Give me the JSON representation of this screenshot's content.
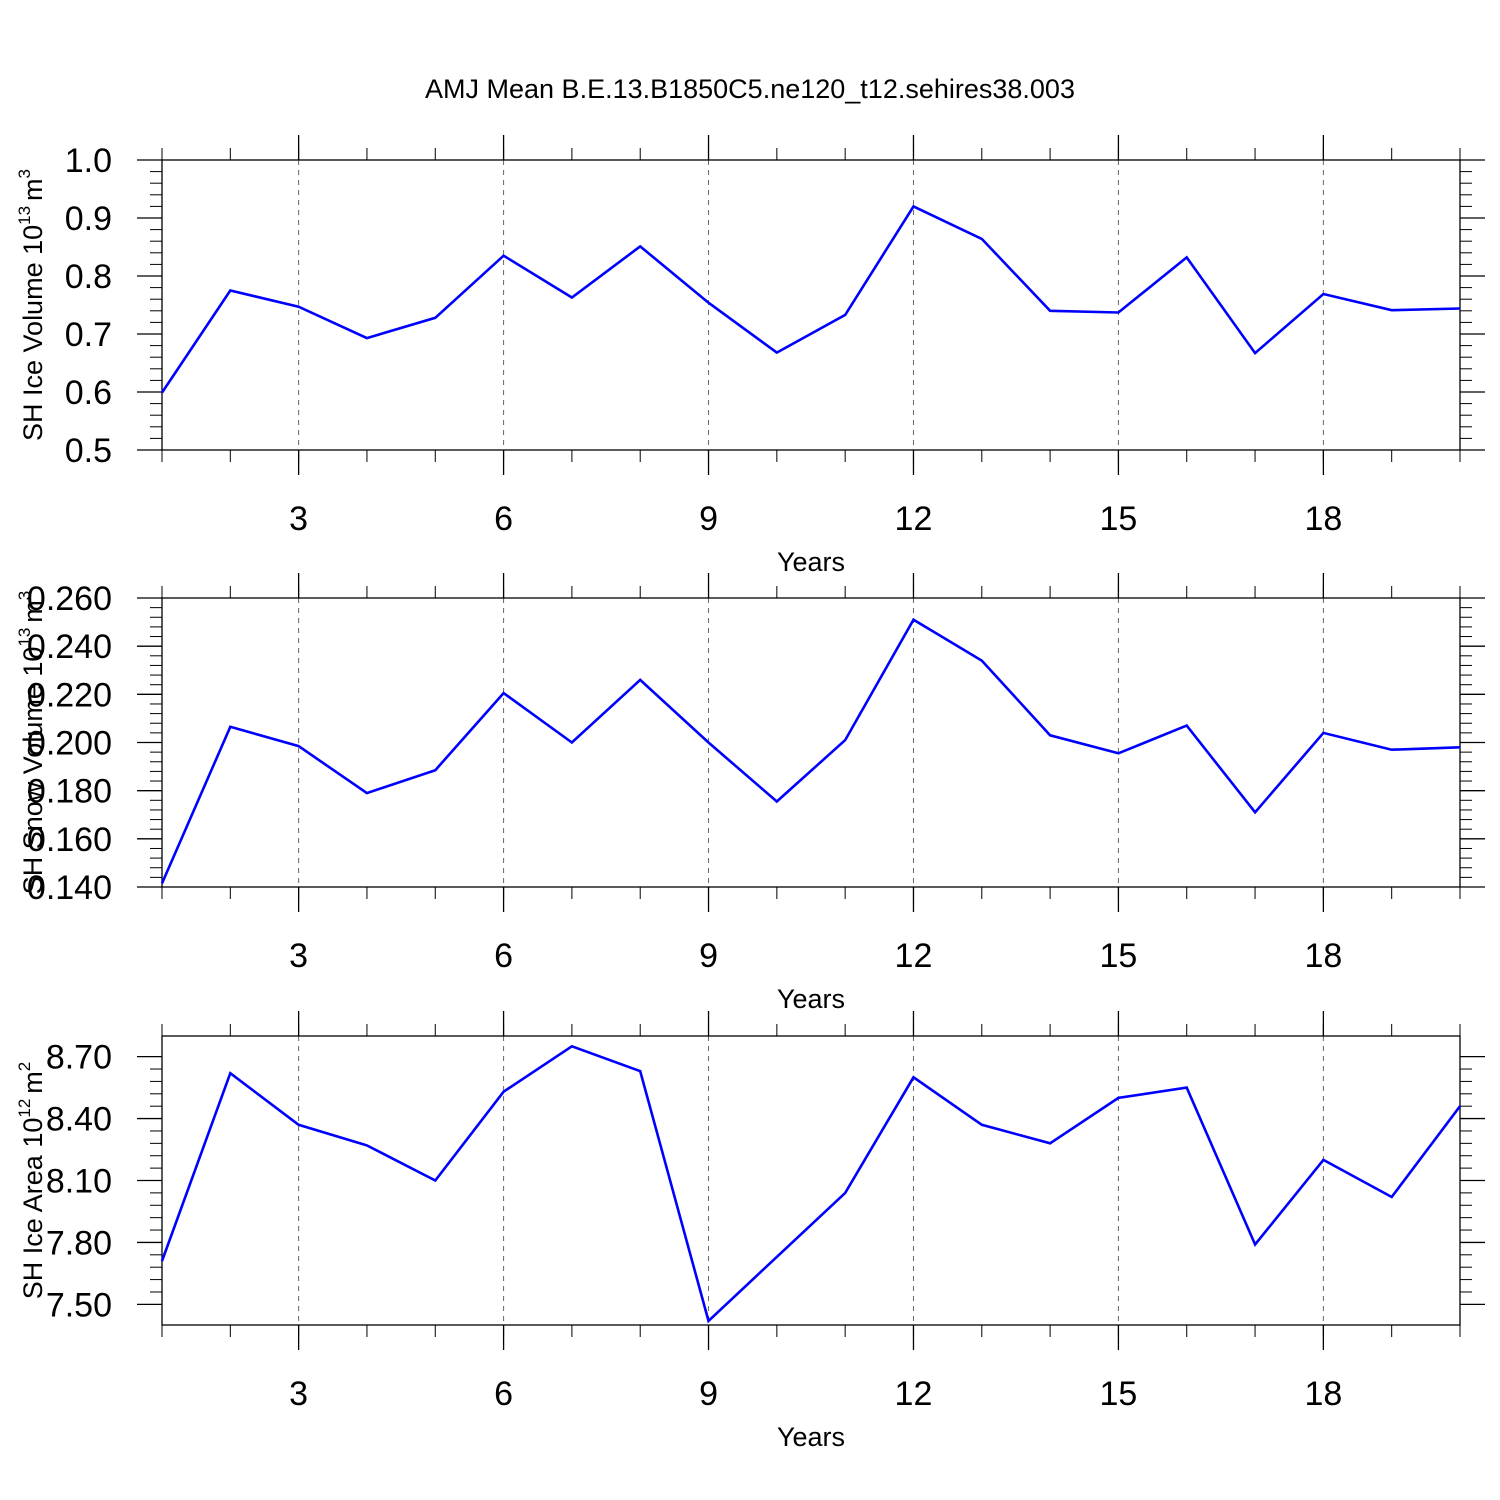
{
  "figure": {
    "title": "AMJ Mean B.E.13.B1850C5.ne120_t12.sehires38.003",
    "line_color": "#0000ff"
  },
  "chart_data": [
    {
      "type": "line",
      "title": "AMJ Mean B.E.13.B1850C5.ne120_t12.sehires38.003",
      "xlabel": "Years",
      "ylabel": "SH Ice Volume 10",
      "ylabel_exp": "13",
      "ylabel_unit": "m",
      "ylabel_unit_exp": "3",
      "xlim": [
        1,
        20
      ],
      "ylim": [
        0.5,
        1.0
      ],
      "xticks": [
        3,
        6,
        9,
        12,
        15,
        18
      ],
      "xtick_labels": [
        "3",
        "6",
        "9",
        "12",
        "15",
        "18"
      ],
      "yticks": [
        0.5,
        0.6,
        0.7,
        0.8,
        0.9,
        1.0
      ],
      "ytick_labels": [
        "0.5",
        "0.6",
        "0.7",
        "0.8",
        "0.9",
        "1.0"
      ],
      "grid": "x-dashed",
      "x": [
        1,
        2,
        3,
        4,
        5,
        6,
        7,
        8,
        9,
        10,
        11,
        12,
        13,
        14,
        15,
        16,
        17,
        18,
        19,
        20
      ],
      "series": [
        {
          "name": "SH Ice Volume",
          "values": [
            0.599,
            0.775,
            0.747,
            0.693,
            0.728,
            0.835,
            0.763,
            0.851,
            0.754,
            0.668,
            0.733,
            0.92,
            0.864,
            0.74,
            0.737,
            0.832,
            0.667,
            0.769,
            0.741,
            0.744
          ]
        }
      ]
    },
    {
      "type": "line",
      "xlabel": "Years",
      "ylabel": "SH Snow Volume 10",
      "ylabel_exp": "13",
      "ylabel_unit": "m",
      "ylabel_unit_exp": "3",
      "xlim": [
        1,
        20
      ],
      "ylim": [
        0.14,
        0.26
      ],
      "xticks": [
        3,
        6,
        9,
        12,
        15,
        18
      ],
      "xtick_labels": [
        "3",
        "6",
        "9",
        "12",
        "15",
        "18"
      ],
      "yticks": [
        0.14,
        0.16,
        0.18,
        0.2,
        0.22,
        0.24,
        0.26
      ],
      "ytick_labels": [
        "0.140",
        "0.160",
        "0.180",
        "0.200",
        "0.220",
        "0.240",
        "0.260"
      ],
      "grid": "x-dashed",
      "x": [
        1,
        2,
        3,
        4,
        5,
        6,
        7,
        8,
        9,
        10,
        11,
        12,
        13,
        14,
        15,
        16,
        17,
        18,
        19,
        20
      ],
      "series": [
        {
          "name": "SH Snow Volume",
          "values": [
            0.1415,
            0.2065,
            0.1985,
            0.179,
            0.1885,
            0.2205,
            0.2,
            0.226,
            0.2,
            0.1755,
            0.201,
            0.251,
            0.234,
            0.203,
            0.1955,
            0.207,
            0.171,
            0.204,
            0.197,
            0.198
          ]
        }
      ]
    },
    {
      "type": "line",
      "xlabel": "Years",
      "ylabel": "SH Ice Area 10",
      "ylabel_exp": "12",
      "ylabel_unit": "m",
      "ylabel_unit_exp": "2",
      "xlim": [
        1,
        20
      ],
      "ylim": [
        7.4,
        8.8
      ],
      "xticks": [
        3,
        6,
        9,
        12,
        15,
        18
      ],
      "xtick_labels": [
        "3",
        "6",
        "9",
        "12",
        "15",
        "18"
      ],
      "yticks": [
        7.5,
        7.8,
        8.1,
        8.4,
        8.7
      ],
      "ytick_labels": [
        "7.50",
        "7.80",
        "8.10",
        "8.40",
        "8.70"
      ],
      "grid": "x-dashed",
      "x": [
        1,
        2,
        3,
        4,
        5,
        6,
        7,
        8,
        9,
        10,
        11,
        12,
        13,
        14,
        15,
        16,
        17,
        18,
        19,
        20
      ],
      "series": [
        {
          "name": "SH Ice Area",
          "values": [
            7.71,
            8.62,
            8.37,
            8.27,
            8.1,
            8.53,
            8.75,
            8.63,
            7.42,
            7.73,
            8.04,
            8.6,
            8.37,
            8.28,
            8.5,
            8.55,
            7.79,
            8.2,
            8.02,
            8.46
          ]
        }
      ]
    }
  ]
}
